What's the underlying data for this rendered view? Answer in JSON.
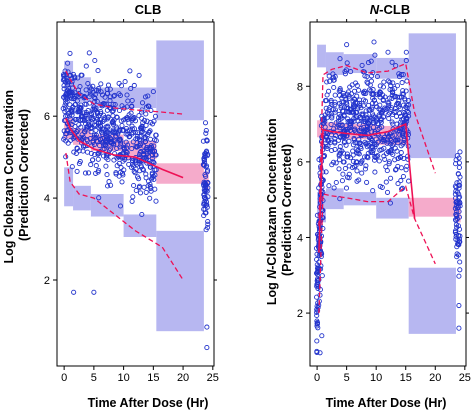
{
  "figure": {
    "ylabel_line1": "Log Clobazam Concentration",
    "ylabel_line2": "(Prediction Corrected)",
    "ylabel_line1_right_prefix": "Log ",
    "ylabel_line1_right_italic": "N",
    "ylabel_line1_right_suffix": "-Clobazam Concentration",
    "ylabel_line2_right": "(Prediction Corrected)",
    "xlabel": "Time After Dose (Hr)"
  },
  "colors": {
    "obs_point": "#2233cc",
    "pi_band": "#aaaaee",
    "median_band": "#f4a6c8",
    "obs_line": "#ee1155",
    "frame": "#000000"
  },
  "chart_data": [
    {
      "type": "scatter",
      "title_prefix": "",
      "title_italic": "",
      "title_suffix": "CLB",
      "xlabel": "Time After Dose (Hr)",
      "ylabel": "Log Clobazam Concentration (Prediction Corrected)",
      "xlim": [
        -1.2,
        25.2
      ],
      "ylim": [
        -0.1,
        8.3
      ],
      "xticks": [
        0,
        5,
        10,
        15,
        20,
        25
      ],
      "yticks": [
        2,
        4,
        6
      ],
      "grid": false,
      "bins": [
        {
          "x0": 0,
          "x1": 1.5,
          "hi_pi": [
            6.55,
            7.35
          ],
          "med_pi": [
            5.45,
            5.95
          ],
          "lo_pi": [
            3.8,
            4.75
          ]
        },
        {
          "x0": 1.5,
          "x1": 4.5,
          "hi_pi": [
            6.35,
            6.95
          ],
          "med_pi": [
            5.3,
            5.7
          ],
          "lo_pi": [
            3.7,
            4.3
          ]
        },
        {
          "x0": 4.5,
          "x1": 10,
          "hi_pi": [
            6.2,
            6.7
          ],
          "med_pi": [
            5.15,
            5.55
          ],
          "lo_pi": [
            3.55,
            4.1
          ]
        },
        {
          "x0": 10,
          "x1": 15.5,
          "hi_pi": [
            6.2,
            6.7
          ],
          "med_pi": [
            4.95,
            5.4
          ],
          "lo_pi": [
            3.05,
            3.6
          ]
        },
        {
          "x0": 15.5,
          "x1": 23.5,
          "hi_pi": [
            5.9,
            7.85
          ],
          "med_pi": [
            4.35,
            4.85
          ],
          "lo_pi": [
            0.75,
            3.2
          ]
        },
        {
          "x0": 23.5,
          "x1": 24.3,
          "hi_pi": null,
          "med_pi": [
            4.2,
            4.65
          ],
          "lo_pi": null
        }
      ],
      "observed_median": {
        "x": [
          0.3,
          1,
          2.5,
          5,
          8.5,
          12,
          16.5,
          20
        ],
        "y": [
          5.95,
          5.7,
          5.4,
          5.2,
          5.05,
          5.0,
          4.7,
          4.5
        ]
      },
      "observed_p95": {
        "x": [
          0.3,
          1,
          2.5,
          5,
          8.5,
          12,
          16.5,
          20
        ],
        "y": [
          7.1,
          6.9,
          6.55,
          6.3,
          6.2,
          6.15,
          6.1,
          6.05
        ]
      },
      "observed_p5": {
        "x": [
          0.3,
          1,
          2.5,
          5,
          8.5,
          12,
          16.5,
          20
        ],
        "y": [
          5.1,
          4.4,
          4.1,
          4.0,
          3.6,
          3.2,
          2.8,
          2.0
        ]
      },
      "points": {
        "seed": 7,
        "dense_clusters": [
          {
            "x_range": [
              -0.2,
              15.5
            ],
            "y_center": [
              6.2,
              5.1
            ],
            "y_spread": 0.85,
            "n": 640
          },
          {
            "x_range": [
              23.4,
              24.2
            ],
            "y_center": [
              4.4,
              4.4
            ],
            "y_spread": 1.1,
            "n": 70
          }
        ],
        "isolated": [
          [
            1.6,
            1.7
          ],
          [
            5,
            1.7
          ],
          [
            24,
            0.85
          ],
          [
            24,
            0.35
          ],
          [
            0.1,
            7.0
          ],
          [
            3.0,
            7.0
          ],
          [
            11.8,
            6.75
          ],
          [
            15.0,
            6.6
          ]
        ]
      }
    },
    {
      "type": "scatter",
      "title_prefix": "",
      "title_italic": "N",
      "title_suffix": "-CLB",
      "xlabel": "Time After Dose (Hr)",
      "ylabel": "Log N-Clobazam Concentration (Prediction Corrected)",
      "xlim": [
        -1.2,
        25.2
      ],
      "ylim": [
        0.6,
        9.7
      ],
      "xticks": [
        0,
        5,
        10,
        15,
        20,
        25
      ],
      "yticks": [
        2,
        4,
        6,
        8
      ],
      "grid": false,
      "bins": [
        {
          "x0": 0,
          "x1": 1.5,
          "hi_pi": [
            8.5,
            9.1
          ],
          "med_pi": [
            6.65,
            7.1
          ],
          "lo_pi": [
            4.4,
            5.2
          ]
        },
        {
          "x0": 1.5,
          "x1": 4.5,
          "hi_pi": [
            8.3,
            8.9
          ],
          "med_pi": [
            6.7,
            7.05
          ],
          "lo_pi": [
            4.75,
            5.3
          ]
        },
        {
          "x0": 4.5,
          "x1": 10,
          "hi_pi": [
            8.35,
            8.85
          ],
          "med_pi": [
            6.6,
            7.0
          ],
          "lo_pi": [
            4.85,
            5.2
          ]
        },
        {
          "x0": 10,
          "x1": 15.5,
          "hi_pi": [
            8.2,
            8.75
          ],
          "med_pi": [
            6.45,
            6.95
          ],
          "lo_pi": [
            4.5,
            5.05
          ]
        },
        {
          "x0": 15.5,
          "x1": 23.5,
          "hi_pi": [
            6.1,
            9.4
          ],
          "med_pi": [
            4.55,
            5.05
          ],
          "lo_pi": [
            1.45,
            3.2
          ]
        },
        {
          "x0": 23.5,
          "x1": 24.3,
          "hi_pi": null,
          "med_pi": [
            4.4,
            4.95
          ],
          "lo_pi": null
        }
      ],
      "observed_median": {
        "x": [
          0.3,
          1,
          2.5,
          5,
          8.5,
          12,
          15,
          16.5
        ],
        "y": [
          3.6,
          6.85,
          6.8,
          6.75,
          6.7,
          6.8,
          7.0,
          4.5
        ]
      },
      "observed_p95": {
        "x": [
          0.3,
          1,
          2.5,
          5,
          8.5,
          12,
          15,
          16.5,
          20
        ],
        "y": [
          4.3,
          8.3,
          8.45,
          8.55,
          8.35,
          8.4,
          8.6,
          7.3,
          5.7
        ]
      },
      "observed_p5": {
        "x": [
          0.3,
          1,
          2.5,
          5,
          8.5,
          12,
          15,
          16.5,
          20
        ],
        "y": [
          2.0,
          5.15,
          5.1,
          5.05,
          4.95,
          4.95,
          5.35,
          4.5,
          3.3
        ]
      },
      "points": {
        "seed": 11,
        "dense_clusters": [
          {
            "x_range": [
              1.0,
              15.5
            ],
            "y_center": [
              7.0,
              6.9
            ],
            "y_spread": 1.05,
            "n": 620
          },
          {
            "x_range": [
              -0.1,
              1.0
            ],
            "y_center": [
              2.5,
              5.8
            ],
            "y_spread": 1.3,
            "n": 140
          },
          {
            "x_range": [
              23.4,
              24.2
            ],
            "y_center": [
              4.6,
              4.6
            ],
            "y_spread": 1.0,
            "n": 70
          }
        ],
        "isolated": [
          [
            0.5,
            0.95
          ],
          [
            0.8,
            1.4
          ],
          [
            24,
            2.2
          ],
          [
            24,
            1.6
          ],
          [
            15.1,
            8.9
          ],
          [
            5,
            9.1
          ],
          [
            12,
            8.9
          ]
        ]
      }
    }
  ]
}
